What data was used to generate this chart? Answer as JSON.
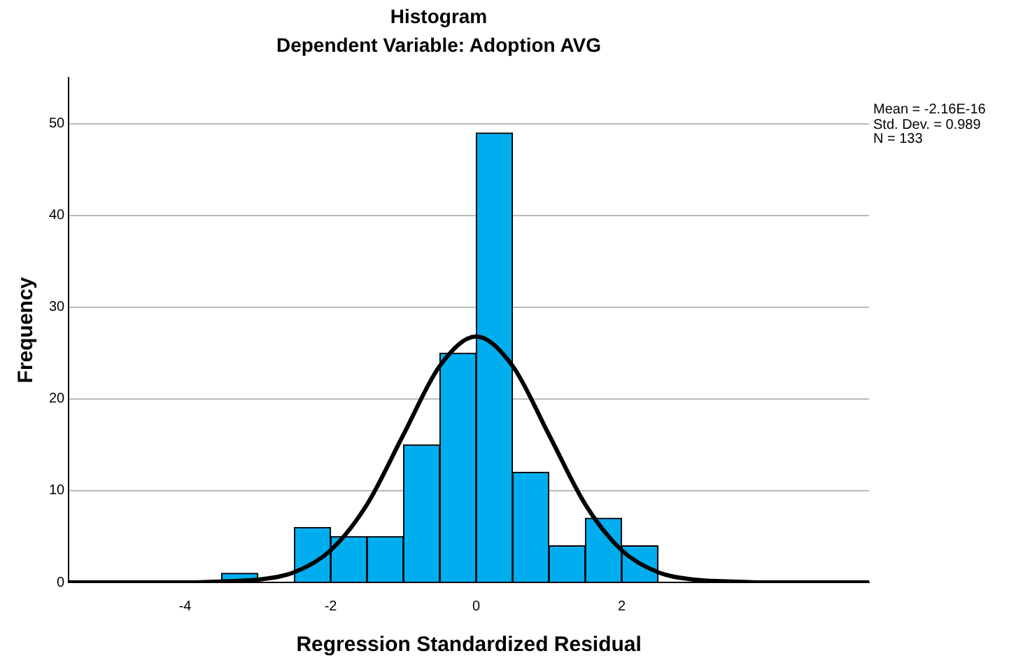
{
  "chart_data": {
    "type": "histogram",
    "title": "Histogram",
    "subtitle": "Dependent Variable: Adoption AVG",
    "xlabel": "Regression Standardized Residual",
    "ylabel": "Frequency",
    "bins": [
      -3.5,
      -3,
      -2.5,
      -2,
      -1.5,
      -1,
      -0.5,
      0,
      0.5,
      1,
      1.5,
      2,
      2.5
    ],
    "values": [
      1,
      0,
      6,
      5,
      5,
      15,
      25,
      49,
      12,
      4,
      7,
      4
    ],
    "color": "#00aeef",
    "series": [
      {
        "type": "line",
        "color": "#000000",
        "x": [
          -5.6,
          -4,
          -3.5,
          -3,
          -2.5,
          -2,
          -1.5,
          -1,
          -0.5,
          0,
          0.5,
          1,
          1.5,
          2,
          2.5,
          3,
          3.5,
          4,
          5.4
        ],
        "values": [
          0,
          0,
          0.1,
          0.3,
          1.1,
          3.5,
          8.5,
          16.1,
          23.6,
          26.8,
          23.6,
          16.1,
          8.5,
          3.5,
          1.1,
          0.3,
          0.1,
          0,
          0
        ]
      }
    ],
    "xlim": [
      -5.6,
      5.4
    ],
    "xticks": [
      -4,
      -2,
      0,
      2
    ],
    "ylim": [
      0,
      55
    ],
    "yticks": [
      0,
      10,
      20,
      30,
      40,
      50
    ],
    "grid": "y",
    "legend": false,
    "marker": "none",
    "line_style": "solid",
    "annotations": [
      "Mean = -2.16E-16",
      "Std. Dev. = 0.989",
      "N = 133"
    ]
  }
}
